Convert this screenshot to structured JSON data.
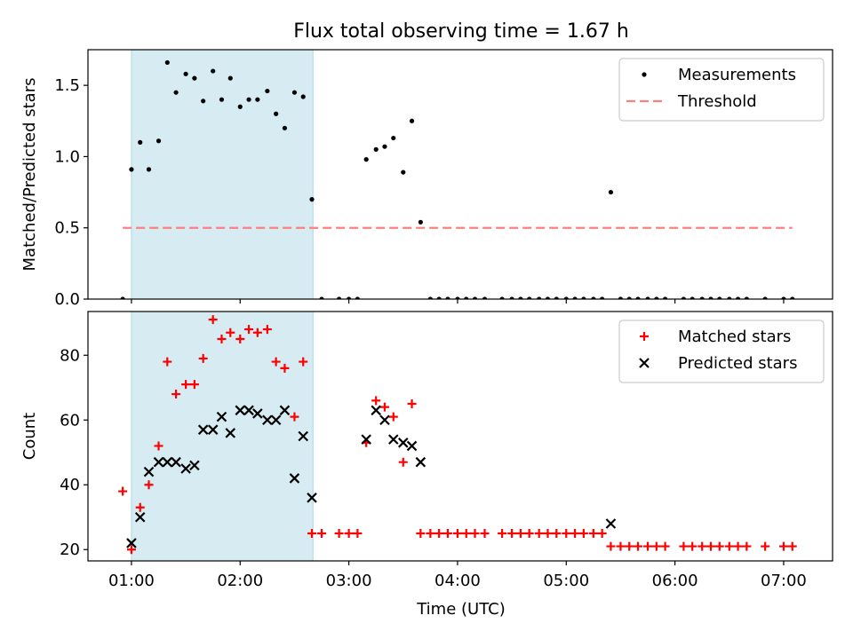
{
  "chart_data": [
    {
      "type": "scatter",
      "title": "Flux total observing time = 1.67 h",
      "ylabel": "Matched/Predicted stars",
      "xlabel": "",
      "x_unit": "hours UTC",
      "xlim": [
        0.6,
        7.45
      ],
      "ylim": [
        0,
        1.75
      ],
      "yticks": [
        0.0,
        0.5,
        1.0,
        1.5
      ],
      "ytick_labels": [
        "0.0",
        "0.5",
        "1.0",
        "1.5"
      ],
      "xticks": [
        1,
        2,
        3,
        4,
        5,
        6,
        7
      ],
      "xtick_labels": [
        "01:00",
        "02:00",
        "03:00",
        "04:00",
        "05:00",
        "06:00",
        "07:00"
      ],
      "show_xtick_labels": false,
      "highlight_span": [
        1.0,
        2.67
      ],
      "threshold": {
        "value": 0.5,
        "x_range": [
          0.92,
          7.08
        ],
        "color": "#ff7f7f"
      },
      "legend": {
        "position": "upper right",
        "entries": [
          "Measurements",
          "Threshold"
        ]
      },
      "series": [
        {
          "name": "Measurements",
          "marker": "dot",
          "color": "#000000",
          "points": [
            [
              0.92,
              0.0
            ],
            [
              1.0,
              0.91
            ],
            [
              1.08,
              1.1
            ],
            [
              1.16,
              0.91
            ],
            [
              1.25,
              1.11
            ],
            [
              1.33,
              1.66
            ],
            [
              1.41,
              1.45
            ],
            [
              1.5,
              1.58
            ],
            [
              1.58,
              1.55
            ],
            [
              1.66,
              1.39
            ],
            [
              1.75,
              1.6
            ],
            [
              1.83,
              1.4
            ],
            [
              1.91,
              1.55
            ],
            [
              2.0,
              1.35
            ],
            [
              2.08,
              1.4
            ],
            [
              2.16,
              1.4
            ],
            [
              2.25,
              1.46
            ],
            [
              2.33,
              1.3
            ],
            [
              2.41,
              1.2
            ],
            [
              2.5,
              1.45
            ],
            [
              2.58,
              1.42
            ],
            [
              2.66,
              0.7
            ],
            [
              2.75,
              0.0
            ],
            [
              2.91,
              0.0
            ],
            [
              3.0,
              0.0
            ],
            [
              3.08,
              0.0
            ],
            [
              3.16,
              0.98
            ],
            [
              3.25,
              1.05
            ],
            [
              3.33,
              1.07
            ],
            [
              3.41,
              1.13
            ],
            [
              3.5,
              0.89
            ],
            [
              3.58,
              1.25
            ],
            [
              3.66,
              0.54
            ],
            [
              3.75,
              0.0
            ],
            [
              3.83,
              0.0
            ],
            [
              3.91,
              0.0
            ],
            [
              4.0,
              0.0
            ],
            [
              4.08,
              0.0
            ],
            [
              4.16,
              0.0
            ],
            [
              4.25,
              0.0
            ],
            [
              4.41,
              0.0
            ],
            [
              4.5,
              0.0
            ],
            [
              4.58,
              0.0
            ],
            [
              4.66,
              0.0
            ],
            [
              4.75,
              0.0
            ],
            [
              4.83,
              0.0
            ],
            [
              4.91,
              0.0
            ],
            [
              5.0,
              0.0
            ],
            [
              5.08,
              0.0
            ],
            [
              5.16,
              0.0
            ],
            [
              5.25,
              0.0
            ],
            [
              5.33,
              0.0
            ],
            [
              5.41,
              0.75
            ],
            [
              5.5,
              0.0
            ],
            [
              5.58,
              0.0
            ],
            [
              5.66,
              0.0
            ],
            [
              5.75,
              0.0
            ],
            [
              5.83,
              0.0
            ],
            [
              5.91,
              0.0
            ],
            [
              6.08,
              0.0
            ],
            [
              6.16,
              0.0
            ],
            [
              6.25,
              0.0
            ],
            [
              6.33,
              0.0
            ],
            [
              6.41,
              0.0
            ],
            [
              6.5,
              0.0
            ],
            [
              6.58,
              0.0
            ],
            [
              6.66,
              0.0
            ],
            [
              6.83,
              0.0
            ],
            [
              7.0,
              0.0
            ],
            [
              7.08,
              0.0
            ]
          ]
        }
      ]
    },
    {
      "type": "scatter",
      "title": "",
      "ylabel": "Count",
      "xlabel": "Time (UTC)",
      "x_unit": "hours UTC",
      "xlim": [
        0.6,
        7.45
      ],
      "ylim": [
        16.5,
        93.5
      ],
      "yticks": [
        20,
        40,
        60,
        80
      ],
      "ytick_labels": [
        "20",
        "40",
        "60",
        "80"
      ],
      "xticks": [
        1,
        2,
        3,
        4,
        5,
        6,
        7
      ],
      "xtick_labels": [
        "01:00",
        "02:00",
        "03:00",
        "04:00",
        "05:00",
        "06:00",
        "07:00"
      ],
      "show_xtick_labels": true,
      "highlight_span": [
        1.0,
        2.67
      ],
      "legend": {
        "position": "upper right",
        "entries": [
          "Matched stars",
          "Predicted stars"
        ]
      },
      "series": [
        {
          "name": "Matched stars",
          "marker": "plus",
          "color": "#ff0000",
          "points": [
            [
              0.92,
              38
            ],
            [
              1.0,
              20
            ],
            [
              1.08,
              33
            ],
            [
              1.16,
              40
            ],
            [
              1.25,
              52
            ],
            [
              1.33,
              78
            ],
            [
              1.41,
              68
            ],
            [
              1.5,
              71
            ],
            [
              1.58,
              71
            ],
            [
              1.66,
              79
            ],
            [
              1.75,
              91
            ],
            [
              1.83,
              85
            ],
            [
              1.91,
              87
            ],
            [
              2.0,
              85
            ],
            [
              2.08,
              88
            ],
            [
              2.16,
              87
            ],
            [
              2.25,
              88
            ],
            [
              2.33,
              78
            ],
            [
              2.41,
              76
            ],
            [
              2.5,
              61
            ],
            [
              2.58,
              78
            ],
            [
              2.66,
              25
            ],
            [
              2.75,
              25
            ],
            [
              2.91,
              25
            ],
            [
              3.0,
              25
            ],
            [
              3.08,
              25
            ],
            [
              3.16,
              53
            ],
            [
              3.25,
              66
            ],
            [
              3.33,
              64
            ],
            [
              3.41,
              61
            ],
            [
              3.5,
              47
            ],
            [
              3.58,
              65
            ],
            [
              3.66,
              25
            ],
            [
              3.75,
              25
            ],
            [
              3.83,
              25
            ],
            [
              3.91,
              25
            ],
            [
              4.0,
              25
            ],
            [
              4.08,
              25
            ],
            [
              4.16,
              25
            ],
            [
              4.25,
              25
            ],
            [
              4.41,
              25
            ],
            [
              4.5,
              25
            ],
            [
              4.58,
              25
            ],
            [
              4.66,
              25
            ],
            [
              4.75,
              25
            ],
            [
              4.83,
              25
            ],
            [
              4.91,
              25
            ],
            [
              5.0,
              25
            ],
            [
              5.08,
              25
            ],
            [
              5.16,
              25
            ],
            [
              5.25,
              25
            ],
            [
              5.33,
              25
            ],
            [
              5.41,
              21
            ],
            [
              5.5,
              21
            ],
            [
              5.58,
              21
            ],
            [
              5.66,
              21
            ],
            [
              5.75,
              21
            ],
            [
              5.83,
              21
            ],
            [
              5.91,
              21
            ],
            [
              6.08,
              21
            ],
            [
              6.16,
              21
            ],
            [
              6.25,
              21
            ],
            [
              6.33,
              21
            ],
            [
              6.41,
              21
            ],
            [
              6.5,
              21
            ],
            [
              6.58,
              21
            ],
            [
              6.66,
              21
            ],
            [
              6.83,
              21
            ],
            [
              7.0,
              21
            ],
            [
              7.08,
              21
            ]
          ]
        },
        {
          "name": "Predicted stars",
          "marker": "x",
          "color": "#000000",
          "points": [
            [
              1.0,
              22
            ],
            [
              1.08,
              30
            ],
            [
              1.16,
              44
            ],
            [
              1.25,
              47
            ],
            [
              1.33,
              47
            ],
            [
              1.41,
              47
            ],
            [
              1.5,
              45
            ],
            [
              1.58,
              46
            ],
            [
              1.66,
              57
            ],
            [
              1.75,
              57
            ],
            [
              1.83,
              61
            ],
            [
              1.91,
              56
            ],
            [
              2.0,
              63
            ],
            [
              2.08,
              63
            ],
            [
              2.16,
              62
            ],
            [
              2.25,
              60
            ],
            [
              2.33,
              60
            ],
            [
              2.41,
              63
            ],
            [
              2.5,
              42
            ],
            [
              2.58,
              55
            ],
            [
              2.66,
              36
            ],
            [
              3.16,
              54
            ],
            [
              3.25,
              63
            ],
            [
              3.33,
              60
            ],
            [
              3.41,
              54
            ],
            [
              3.5,
              53
            ],
            [
              3.58,
              52
            ],
            [
              3.66,
              47
            ],
            [
              5.41,
              28
            ]
          ]
        }
      ]
    }
  ]
}
